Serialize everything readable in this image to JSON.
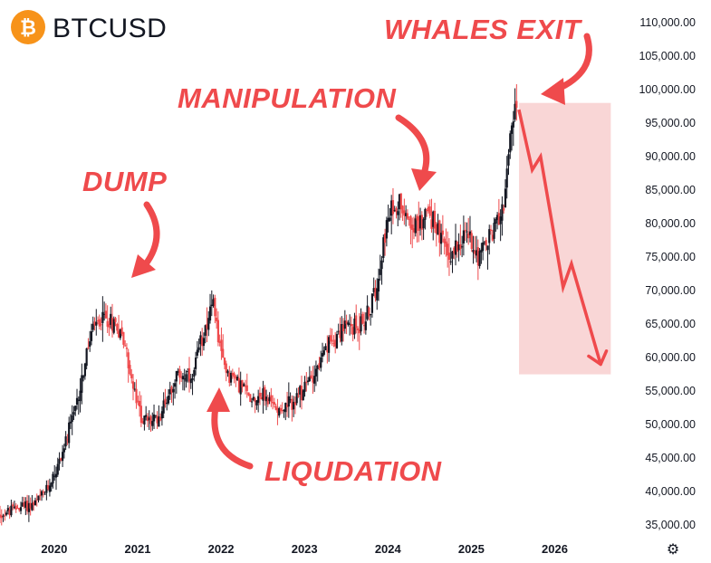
{
  "header": {
    "symbol": "BTCUSD",
    "logo_icon": "bitcoin-icon",
    "logo_glyph": "₿",
    "logo_color": "#f7931a"
  },
  "colors": {
    "up": "#131722",
    "down": "#ef4a4c",
    "annotation": "#ef4a4c",
    "forecast_box": "#f6c5c5"
  },
  "settings_icon": {
    "name": "gear-icon",
    "glyph": "⚙"
  },
  "chart_data": {
    "type": "candlestick",
    "symbol": "BTCUSD",
    "y_axis": {
      "position": "right",
      "range": [
        33000,
        112000
      ],
      "ticks": [
        "110,000.00",
        "105,000.00",
        "100,000.00",
        "95,000.00",
        "90,000.00",
        "85,000.00",
        "80,000.00",
        "75,000.00",
        "70,000.00",
        "65,000.00",
        "60,000.00",
        "55,000.00",
        "50,000.00",
        "45,000.00",
        "40,000.00",
        "35,000.00"
      ],
      "tick_values": [
        110000,
        105000,
        100000,
        95000,
        90000,
        85000,
        80000,
        75000,
        70000,
        65000,
        60000,
        55000,
        50000,
        45000,
        40000,
        35000
      ]
    },
    "x_axis": {
      "range": [
        2019.35,
        2026.95
      ],
      "ticks": [
        "2020",
        "2021",
        "2022",
        "2023",
        "2024",
        "2025",
        "2026"
      ],
      "tick_values": [
        2020,
        2021,
        2022,
        2023,
        2024,
        2025,
        2026
      ]
    },
    "grid": false,
    "approx_close_path": [
      [
        2019.35,
        36500
      ],
      [
        2019.6,
        37800
      ],
      [
        2019.75,
        38000
      ],
      [
        2019.9,
        40000
      ],
      [
        2020.05,
        44000
      ],
      [
        2020.15,
        48000
      ],
      [
        2020.25,
        52000
      ],
      [
        2020.35,
        58000
      ],
      [
        2020.45,
        64000
      ],
      [
        2020.6,
        66000
      ],
      [
        2020.75,
        65000
      ],
      [
        2020.85,
        62000
      ],
      [
        2020.95,
        55000
      ],
      [
        2021.05,
        51000
      ],
      [
        2021.15,
        50500
      ],
      [
        2021.25,
        51000
      ],
      [
        2021.35,
        54000
      ],
      [
        2021.45,
        57000
      ],
      [
        2021.55,
        57500
      ],
      [
        2021.65,
        56000
      ],
      [
        2021.75,
        62000
      ],
      [
        2021.85,
        66500
      ],
      [
        2021.92,
        67500
      ],
      [
        2022.0,
        60000
      ],
      [
        2022.1,
        57500
      ],
      [
        2022.2,
        56500
      ],
      [
        2022.35,
        54000
      ],
      [
        2022.5,
        54500
      ],
      [
        2022.6,
        53000
      ],
      [
        2022.75,
        52500
      ],
      [
        2022.9,
        53500
      ],
      [
        2023.0,
        55500
      ],
      [
        2023.1,
        57500
      ],
      [
        2023.2,
        59500
      ],
      [
        2023.3,
        62000
      ],
      [
        2023.45,
        64500
      ],
      [
        2023.6,
        64500
      ],
      [
        2023.75,
        66000
      ],
      [
        2023.85,
        70000
      ],
      [
        2023.95,
        78000
      ],
      [
        2024.05,
        82000
      ],
      [
        2024.15,
        83500
      ],
      [
        2024.25,
        81000
      ],
      [
        2024.35,
        79000
      ],
      [
        2024.45,
        82000
      ],
      [
        2024.55,
        80500
      ],
      [
        2024.65,
        77000
      ],
      [
        2024.75,
        75000
      ],
      [
        2024.85,
        77500
      ],
      [
        2024.95,
        78500
      ],
      [
        2025.05,
        76000
      ],
      [
        2025.12,
        75500
      ],
      [
        2025.2,
        77500
      ],
      [
        2025.3,
        80000
      ],
      [
        2025.38,
        83000
      ],
      [
        2025.45,
        90000
      ],
      [
        2025.52,
        97000
      ],
      [
        2025.55,
        99000
      ]
    ],
    "annotations": [
      {
        "text": "WHALES EXIT"
      },
      {
        "text": "MANIPULATION"
      },
      {
        "text": "DUMP"
      },
      {
        "text": "LIQUDATION"
      }
    ],
    "forecast": {
      "box": {
        "x0": 2025.55,
        "x1": 2026.65,
        "y0": 57500,
        "y1": 98000
      },
      "zigzag": [
        [
          2025.57,
          97000
        ],
        [
          2025.73,
          88000
        ],
        [
          2025.83,
          90000
        ],
        [
          2026.1,
          70500
        ],
        [
          2026.2,
          74000
        ],
        [
          2026.55,
          59000
        ]
      ]
    }
  }
}
